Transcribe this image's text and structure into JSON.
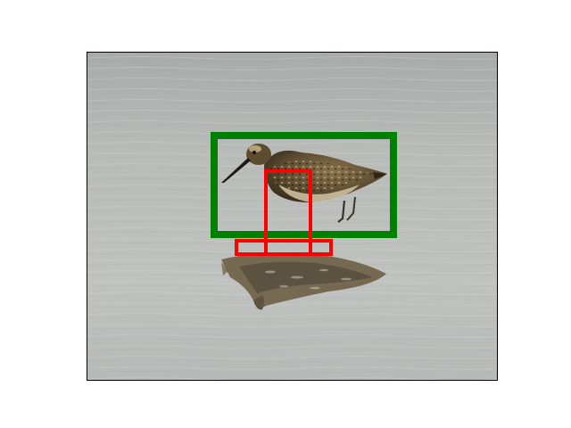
{
  "image": {
    "subject": "sandpiper",
    "scene": "shallow-water",
    "colors": {
      "water_light": "#c2c4c2",
      "water_mid": "#b3b5b3",
      "water_dark": "#a7aaa8",
      "bird_dark": "#2e2417",
      "bird_mid": "#6e5a3b",
      "bird_light": "#b59d70",
      "beak": "#1d1a16",
      "reflection": "#5a4b33"
    }
  },
  "annotations": {
    "ground_truth_color": "#008000",
    "prediction_color": "#ff0000"
  }
}
